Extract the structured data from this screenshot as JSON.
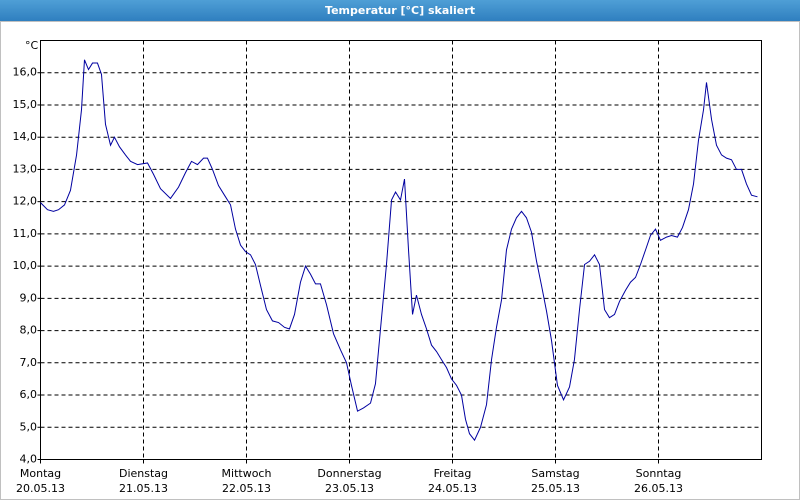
{
  "chart_data": {
    "type": "line",
    "title": "Temperatur [°C] skaliert",
    "ylabel": "°C",
    "color": "#0000a0",
    "grid": true,
    "xlim": [
      0,
      7
    ],
    "xticks": [
      {
        "value": 0,
        "label": "Montag"
      },
      {
        "value": 1,
        "label": "Dienstag"
      },
      {
        "value": 2,
        "label": "Mittwoch"
      },
      {
        "value": 3,
        "label": "Donnerstag"
      },
      {
        "value": 4,
        "label": "Freitag"
      },
      {
        "value": 5,
        "label": "Samstag"
      },
      {
        "value": 6,
        "label": "Sonntag"
      }
    ],
    "xtick_dates": [
      "20.05.13",
      "21.05.13",
      "22.05.13",
      "23.05.13",
      "24.05.13",
      "25.05.13",
      "26.05.13"
    ],
    "ylim": [
      4,
      17
    ],
    "yticks": [
      {
        "value": 4,
        "label": "4,0"
      },
      {
        "value": 5,
        "label": "5,0"
      },
      {
        "value": 6,
        "label": "6,0"
      },
      {
        "value": 7,
        "label": "7,0"
      },
      {
        "value": 8,
        "label": "8,0"
      },
      {
        "value": 9,
        "label": "9,0"
      },
      {
        "value": 10,
        "label": "10,0"
      },
      {
        "value": 11,
        "label": "11,0"
      },
      {
        "value": 12,
        "label": "12,0"
      },
      {
        "value": 13,
        "label": "13,0"
      },
      {
        "value": 14,
        "label": "14,0"
      },
      {
        "value": 15,
        "label": "15,0"
      },
      {
        "value": 16,
        "label": "16,0"
      }
    ],
    "x": [
      0,
      0.068,
      0.126,
      0.175,
      0.233,
      0.291,
      0.35,
      0.398,
      0.427,
      0.466,
      0.505,
      0.553,
      0.592,
      0.631,
      0.68,
      0.718,
      0.767,
      0.825,
      0.874,
      0.942,
      1.039,
      1.097,
      1.165,
      1.262,
      1.34,
      1.408,
      1.466,
      1.524,
      1.583,
      1.621,
      1.67,
      1.728,
      1.796,
      1.845,
      1.893,
      1.942,
      1.99,
      2.039,
      2.087,
      2.136,
      2.194,
      2.252,
      2.311,
      2.369,
      2.417,
      2.466,
      2.524,
      2.573,
      2.621,
      2.67,
      2.718,
      2.777,
      2.845,
      2.913,
      2.971,
      3.019,
      3.078,
      3.136,
      3.204,
      3.252,
      3.301,
      3.359,
      3.408,
      3.447,
      3.495,
      3.534,
      3.573,
      3.612,
      3.65,
      3.699,
      3.748,
      3.796,
      3.845,
      3.893,
      3.942,
      3.99,
      4.039,
      4.087,
      4.126,
      4.165,
      4.214,
      4.272,
      4.33,
      4.379,
      4.427,
      4.476,
      4.524,
      4.573,
      4.621,
      4.67,
      4.718,
      4.767,
      4.816,
      4.864,
      4.913,
      4.961,
      5.019,
      5.078,
      5.136,
      5.184,
      5.233,
      5.282,
      5.33,
      5.379,
      5.427,
      5.476,
      5.524,
      5.573,
      5.621,
      5.68,
      5.728,
      5.777,
      5.825,
      5.874,
      5.922,
      5.971,
      6.019,
      6.078,
      6.126,
      6.184,
      6.233,
      6.291,
      6.34,
      6.388,
      6.437,
      6.466,
      6.515,
      6.563,
      6.612,
      6.66,
      6.709,
      6.757,
      6.806,
      6.854,
      6.903,
      6.961
    ],
    "values": [
      11.97,
      11.75,
      11.7,
      11.75,
      11.9,
      12.35,
      13.45,
      14.85,
      16.4,
      16.1,
      16.3,
      16.3,
      15.95,
      14.4,
      13.75,
      14.0,
      13.7,
      13.45,
      13.25,
      13.15,
      13.2,
      12.85,
      12.4,
      12.1,
      12.45,
      12.9,
      13.25,
      13.15,
      13.35,
      13.35,
      13.0,
      12.5,
      12.15,
      11.9,
      11.15,
      10.65,
      10.45,
      10.35,
      10.05,
      9.4,
      8.65,
      8.3,
      8.25,
      8.1,
      8.05,
      8.5,
      9.5,
      10.0,
      9.75,
      9.45,
      9.45,
      8.8,
      7.9,
      7.4,
      7.0,
      6.3,
      5.5,
      5.6,
      5.75,
      6.35,
      8.05,
      10.05,
      12.05,
      12.3,
      12.05,
      12.7,
      10.5,
      8.5,
      9.1,
      8.5,
      8.05,
      7.55,
      7.35,
      7.1,
      6.85,
      6.5,
      6.3,
      6.0,
      5.25,
      4.8,
      4.6,
      5.0,
      5.7,
      7.1,
      8.1,
      8.95,
      10.5,
      11.15,
      11.5,
      11.7,
      11.5,
      11.05,
      10.15,
      9.4,
      8.6,
      7.7,
      6.3,
      5.85,
      6.25,
      7.1,
      8.65,
      10.05,
      10.15,
      10.35,
      10.05,
      8.65,
      8.4,
      8.5,
      8.9,
      9.25,
      9.5,
      9.65,
      10.05,
      10.5,
      10.95,
      11.15,
      10.8,
      10.9,
      10.95,
      10.9,
      11.2,
      11.75,
      12.55,
      13.9,
      14.85,
      15.7,
      14.55,
      13.75,
      13.45,
      13.35,
      13.3,
      13.0,
      13.0,
      12.55,
      12.2,
      12.15
    ]
  }
}
